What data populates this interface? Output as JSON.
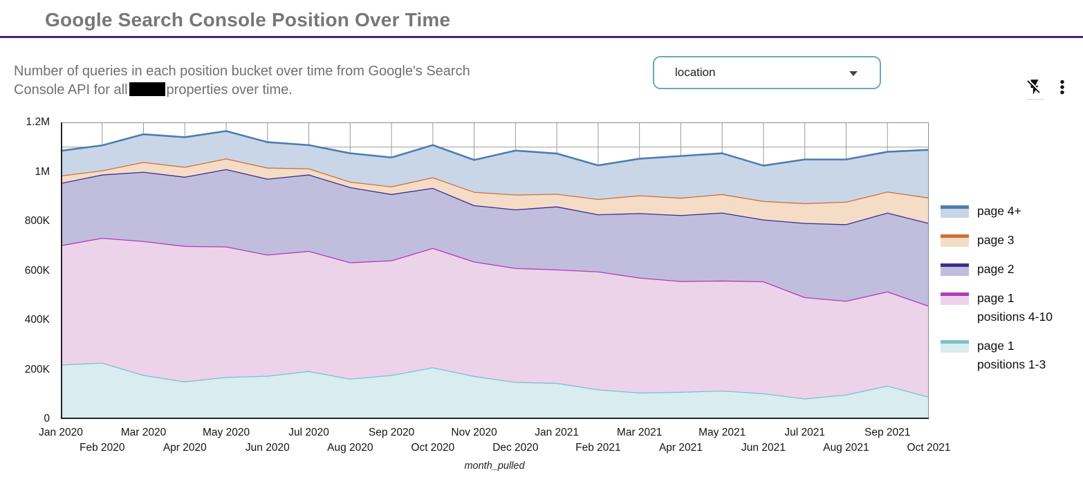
{
  "header": {
    "title": "Google Search Console Position Over Time"
  },
  "subtitle": {
    "line1": "Number of queries in each position bucket over time from Google's Search",
    "line2_prefix": "Console API for all",
    "line2_suffix": "properties over time."
  },
  "filter": {
    "label": "location"
  },
  "chart_data": {
    "type": "area",
    "stacked": true,
    "xlabel": "month_pulled",
    "ylabel": "",
    "ylim": [
      0,
      1200000
    ],
    "y_grid_interval": 100000,
    "grid": true,
    "legend_position": "right",
    "y_ticks": [
      {
        "label": "0",
        "value": 0
      },
      {
        "label": "200K",
        "value": 200000
      },
      {
        "label": "400K",
        "value": 400000
      },
      {
        "label": "600K",
        "value": 600000
      },
      {
        "label": "800K",
        "value": 800000
      },
      {
        "label": "1M",
        "value": 1000000
      },
      {
        "label": "1.2M",
        "value": 1200000
      }
    ],
    "x": [
      "Jan 2020",
      "Feb 2020",
      "Mar 2020",
      "Apr 2020",
      "May 2020",
      "Jun 2020",
      "Jul 2020",
      "Aug 2020",
      "Sep 2020",
      "Oct 2020",
      "Nov 2020",
      "Dec 2020",
      "Jan 2021",
      "Feb 2021",
      "Mar 2021",
      "Apr 2021",
      "May 2021",
      "Jun 2021",
      "Jul 2021",
      "Aug 2021",
      "Sep 2021",
      "Oct 2021"
    ],
    "series": [
      {
        "name": "page 1 positions 1-3",
        "label_lines": [
          "page 1",
          "positions 1-3"
        ],
        "line_color": "#7cc0cb",
        "fill_color": "#d9ecef",
        "values": [
          220000,
          228000,
          178000,
          152000,
          170000,
          175000,
          194000,
          163000,
          178000,
          209000,
          174000,
          150000,
          146000,
          120000,
          107000,
          110000,
          115000,
          104000,
          83000,
          99000,
          135000,
          90000
        ]
      },
      {
        "name": "page 1 positions 4-10",
        "label_lines": [
          "page 1",
          "positions 4-10"
        ],
        "line_color": "#b13cb4",
        "fill_color": "#ecd3ea",
        "values": [
          483000,
          505000,
          542000,
          548000,
          528000,
          490000,
          486000,
          471000,
          464000,
          483000,
          463000,
          461000,
          459000,
          477000,
          465000,
          448000,
          445000,
          453000,
          410000,
          379000,
          381000,
          368000
        ]
      },
      {
        "name": "page 2",
        "label_lines": [
          "page 2"
        ],
        "line_color": "#38308d",
        "fill_color": "#c1bddd",
        "values": [
          252000,
          256000,
          280000,
          280000,
          313000,
          307000,
          309000,
          304000,
          268000,
          243000,
          228000,
          237000,
          255000,
          231000,
          261000,
          267000,
          275000,
          250000,
          300000,
          310000,
          319000,
          335000
        ]
      },
      {
        "name": "page 3",
        "label_lines": [
          "page 3"
        ],
        "line_color": "#cf7134",
        "fill_color": "#f5dcc7",
        "values": [
          30000,
          17000,
          40000,
          40000,
          43000,
          45000,
          25000,
          22000,
          31000,
          43000,
          54000,
          60000,
          51000,
          62000,
          72000,
          70000,
          75000,
          75000,
          80000,
          91000,
          85000,
          103000
        ]
      },
      {
        "name": "page 4+",
        "label_lines": [
          "page 4+"
        ],
        "line_color": "#4c7dae",
        "fill_color": "#c9d6e8",
        "values": [
          100000,
          101000,
          112000,
          120000,
          111000,
          103000,
          94000,
          115000,
          117000,
          130000,
          129000,
          178000,
          163000,
          136000,
          148000,
          169000,
          165000,
          143000,
          177000,
          171000,
          161000,
          193000
        ]
      }
    ]
  }
}
